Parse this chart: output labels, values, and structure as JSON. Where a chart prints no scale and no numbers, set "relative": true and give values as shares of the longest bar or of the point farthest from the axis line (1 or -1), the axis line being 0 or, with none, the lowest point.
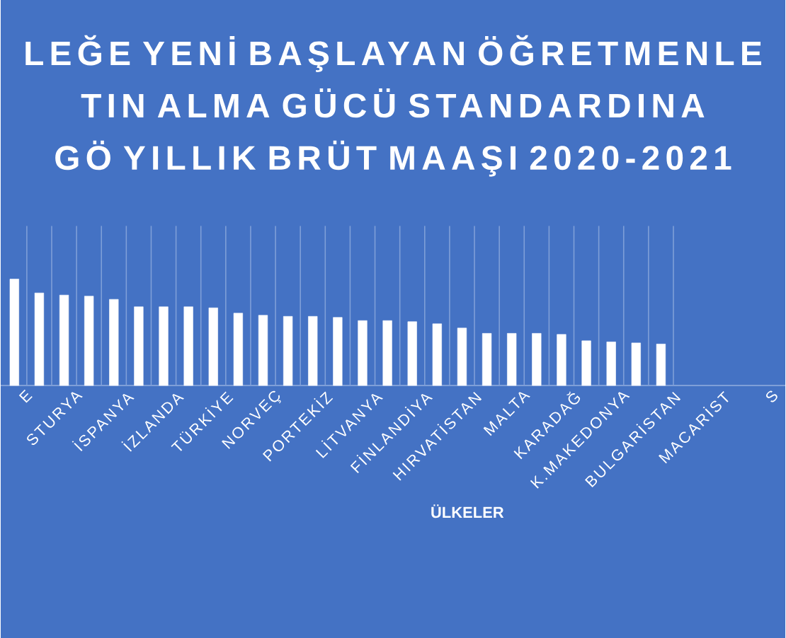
{
  "chart_data": {
    "type": "bar",
    "title": "LEĞE YENİ BAŞLAYAN ÖĞRETMENLE TIN ALMA GÜCÜ STANDARDINA GÖ YILLIK BRÜT MAAŞI 2020-2021",
    "xlabel": "ÜLKELER",
    "categories": [
      "E",
      null,
      "STURYA",
      null,
      "İSPANYA",
      null,
      "İZLANDA",
      null,
      "TÜRKİYE",
      null,
      "NORVEÇ",
      null,
      "PORTEKİZ",
      null,
      "LİTVANYA",
      null,
      "FİNLANDİYA",
      null,
      "HIRVATİSTAN",
      null,
      "MALTA",
      null,
      "KARADAĞ",
      null,
      "K.MAKEDONYA",
      null,
      "BULGARİSTAN"
    ],
    "values": [
      1,
      0.87,
      0.85,
      0.84,
      0.81,
      0.74,
      0.74,
      0.74,
      0.73,
      0.68,
      0.66,
      0.65,
      0.65,
      0.64,
      0.61,
      0.61,
      0.6,
      0.58,
      0.54,
      0.49,
      0.49,
      0.49,
      0.48,
      0.42,
      0.41,
      0.4,
      0.39
    ],
    "annotations": [
      "MACARİST",
      "S"
    ],
    "color": "#ffffff",
    "relative": true,
    "grid": "x"
  }
}
